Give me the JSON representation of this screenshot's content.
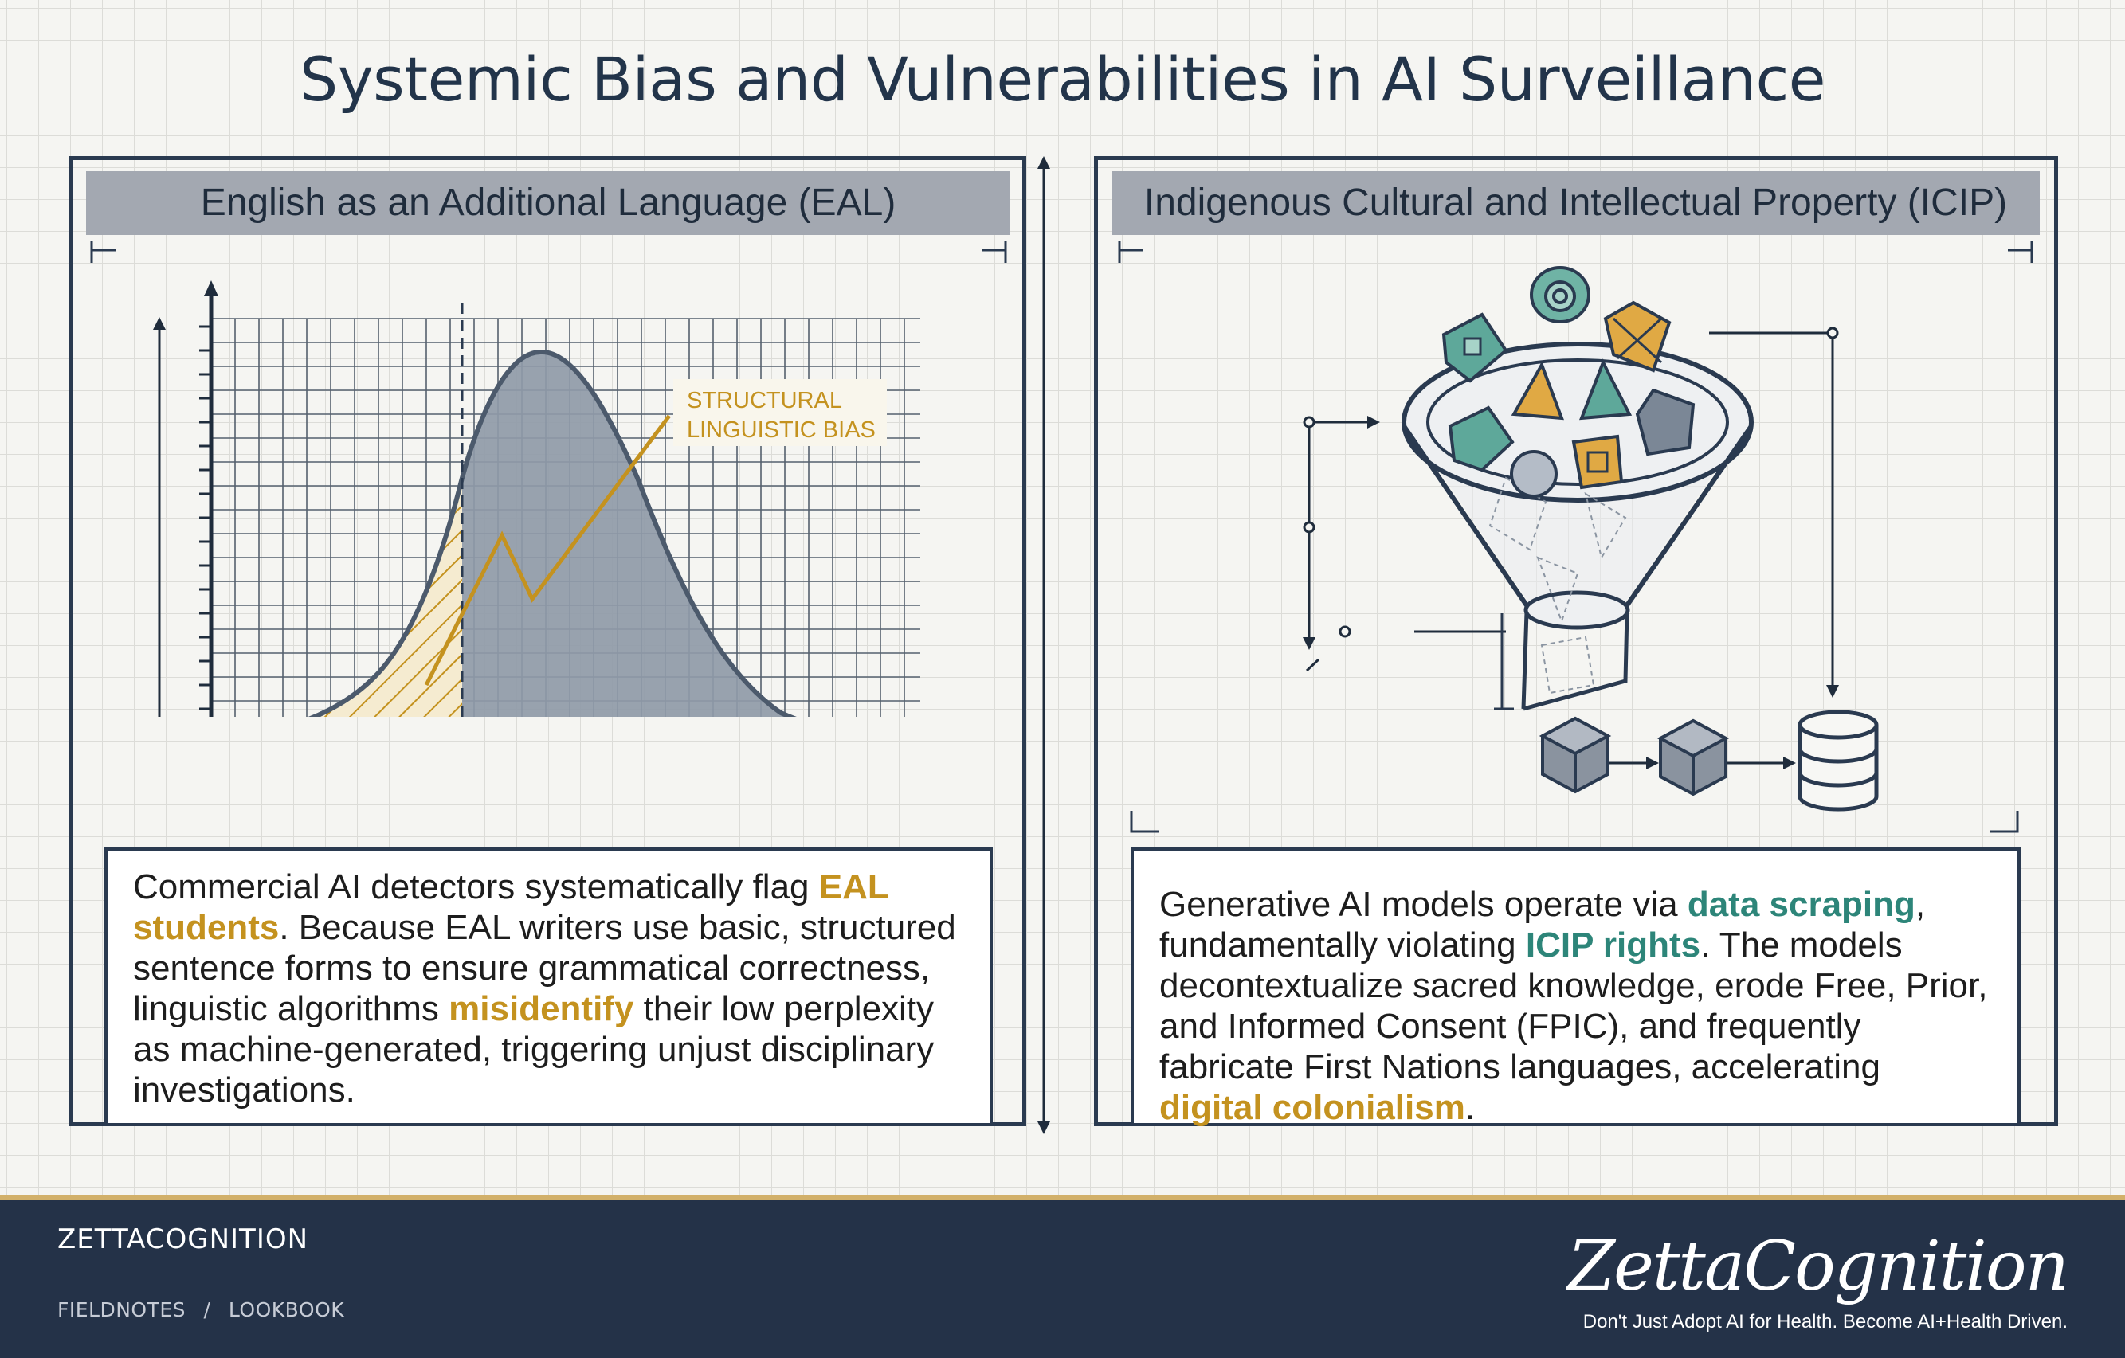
{
  "title": "Systemic Bias and Vulnerabilities in AI Surveillance",
  "colors": {
    "accent_gold": "#c4921f",
    "accent_teal": "#2d8579",
    "ink": "#2a3a50",
    "header_bar": "#a3a8b1",
    "footer_bg": "#243248"
  },
  "left_panel": {
    "heading": "English as an Additional Language (EAL)",
    "chart_label_line1": "STRUCTURAL",
    "chart_label_line2": "LINGUISTIC BIAS",
    "text": {
      "p1": "Commercial AI detectors systematically flag ",
      "hl1": "EAL students",
      "p2": ". Because EAL writers use basic, structured sentence forms to ensure grammatical correctness, linguistic algorithms ",
      "hl2": "misidentify",
      "p3": " their low perplexity as machine-generated, triggering unjust disciplinary investigations."
    }
  },
  "right_panel": {
    "heading": "Indigenous Cultural and Intellectual Property (ICIP)",
    "text": {
      "p1": "Generative AI models operate via ",
      "hl1": "data scraping",
      "p2": ", fundamentally violating ",
      "hl2": "ICIP rights",
      "p3": ". The models decontextualize sacred knowledge, erode Free, Prior, and Informed Consent (FPIC), and frequently fabricate First Nations languages, accelerating ",
      "hl3": "digital colonialism",
      "p4": "."
    },
    "icons": [
      "cultural-artifacts-icon",
      "funnel-icon",
      "cube-icon",
      "database-icon"
    ]
  },
  "footer": {
    "brand": "ZETTACOGNITION",
    "crumb1": "FIELDNOTES",
    "separator": "/",
    "crumb2": "LOOKBOOK",
    "logo_text": "ZettaCognition",
    "tagline": "Don't Just Adopt AI for Health. Become AI+Health Driven."
  }
}
